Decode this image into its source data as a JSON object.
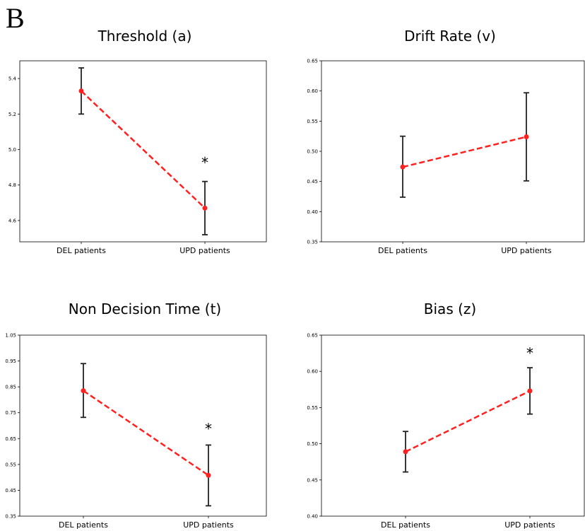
{
  "figure": {
    "panel_letter": "B"
  },
  "chart_data": [
    {
      "type": "line",
      "title": "Threshold (a)",
      "xlabel": "",
      "ylabel": "",
      "categories": [
        "DEL patients",
        "UPD patients"
      ],
      "ylim": [
        4.48,
        5.5
      ],
      "yticks": [
        4.6,
        4.8,
        5.0,
        5.2,
        5.4
      ],
      "ytick_labels": [
        "4.6",
        "4.8",
        "5.0",
        "5.2",
        "5.4"
      ],
      "series": [
        {
          "values": [
            5.33,
            4.67
          ],
          "err_low": [
            5.2,
            4.52
          ],
          "err_high": [
            5.46,
            4.82
          ],
          "color": "#ff2020",
          "style": "dashed"
        }
      ],
      "annotations": [
        {
          "text": "*",
          "category": 1,
          "value": 4.93
        }
      ],
      "grid": false
    },
    {
      "type": "line",
      "title": "Drift Rate (v)",
      "xlabel": "",
      "ylabel": "",
      "categories": [
        "DEL patients",
        "UPD patients"
      ],
      "ylim": [
        0.35,
        0.65
      ],
      "yticks": [
        0.35,
        0.4,
        0.45,
        0.5,
        0.55,
        0.6,
        0.65
      ],
      "ytick_labels": [
        "0.35",
        "0.40",
        "0.45",
        "0.50",
        "0.55",
        "0.60",
        "0.65"
      ],
      "series": [
        {
          "values": [
            0.474,
            0.524
          ],
          "err_low": [
            0.424,
            0.451
          ],
          "err_high": [
            0.525,
            0.597
          ],
          "color": "#ff2020",
          "style": "dashed"
        }
      ],
      "annotations": [],
      "grid": false
    },
    {
      "type": "line",
      "title": "Non Decision Time (t)",
      "xlabel": "",
      "ylabel": "",
      "categories": [
        "DEL patients",
        "UPD patients"
      ],
      "ylim": [
        0.35,
        1.05
      ],
      "yticks": [
        0.35,
        0.45,
        0.55,
        0.65,
        0.75,
        0.85,
        0.95,
        1.05
      ],
      "ytick_labels": [
        "0.35",
        "0.45",
        "0.55",
        "0.65",
        "0.75",
        "0.85",
        "0.95",
        "1.05"
      ],
      "series": [
        {
          "values": [
            0.835,
            0.508
          ],
          "err_low": [
            0.732,
            0.39
          ],
          "err_high": [
            0.94,
            0.625
          ],
          "color": "#ff2020",
          "style": "dashed"
        }
      ],
      "annotations": [
        {
          "text": "*",
          "category": 1,
          "value": 0.69
        }
      ],
      "grid": false
    },
    {
      "type": "line",
      "title": "Bias (z)",
      "xlabel": "",
      "ylabel": "",
      "categories": [
        "DEL patients",
        "UPD patients"
      ],
      "ylim": [
        0.4,
        0.65
      ],
      "yticks": [
        0.4,
        0.45,
        0.5,
        0.55,
        0.6,
        0.65
      ],
      "ytick_labels": [
        "0.40",
        "0.45",
        "0.50",
        "0.55",
        "0.60",
        "0.65"
      ],
      "series": [
        {
          "values": [
            0.489,
            0.573
          ],
          "err_low": [
            0.461,
            0.541
          ],
          "err_high": [
            0.517,
            0.605
          ],
          "color": "#ff2020",
          "style": "dashed"
        }
      ],
      "annotations": [
        {
          "text": "*",
          "category": 1,
          "value": 0.626
        }
      ],
      "grid": false
    }
  ]
}
